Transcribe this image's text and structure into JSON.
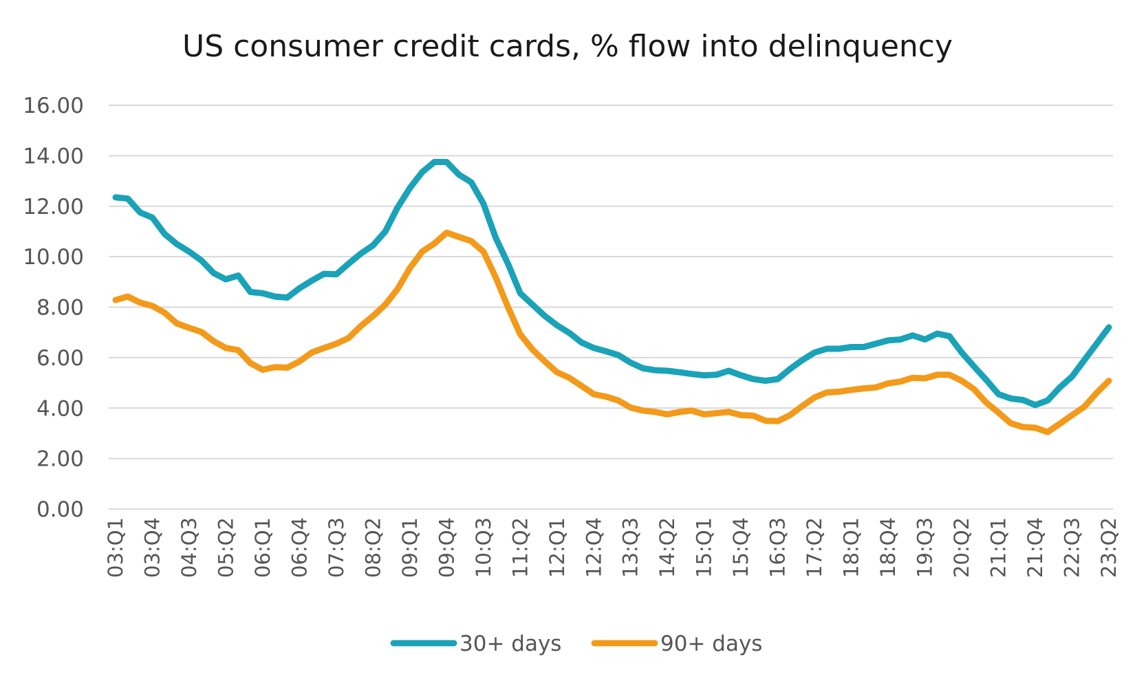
{
  "chart_data": {
    "type": "line",
    "title": "US consumer credit cards, % flow into delinquency",
    "xlabel": "",
    "ylabel": "",
    "ylim": [
      0,
      16
    ],
    "yticks": [
      "0.00",
      "2.00",
      "4.00",
      "6.00",
      "8.00",
      "10.00",
      "12.00",
      "14.00",
      "16.00"
    ],
    "grid": true,
    "legend": "bottom",
    "x": [
      "03:Q1",
      "03:Q2",
      "03:Q3",
      "03:Q4",
      "04:Q1",
      "04:Q2",
      "04:Q3",
      "04:Q4",
      "05:Q1",
      "05:Q2",
      "05:Q3",
      "05:Q4",
      "06:Q1",
      "06:Q2",
      "06:Q3",
      "06:Q4",
      "07:Q1",
      "07:Q2",
      "07:Q3",
      "07:Q4",
      "08:Q1",
      "08:Q2",
      "08:Q3",
      "08:Q4",
      "09:Q1",
      "09:Q2",
      "09:Q3",
      "09:Q4",
      "10:Q1",
      "10:Q2",
      "10:Q3",
      "10:Q4",
      "11:Q1",
      "11:Q2",
      "11:Q3",
      "11:Q4",
      "12:Q1",
      "12:Q2",
      "12:Q3",
      "12:Q4",
      "13:Q1",
      "13:Q2",
      "13:Q3",
      "13:Q4",
      "14:Q1",
      "14:Q2",
      "14:Q3",
      "14:Q4",
      "15:Q1",
      "15:Q2",
      "15:Q3",
      "15:Q4",
      "16:Q1",
      "16:Q2",
      "16:Q3",
      "16:Q4",
      "17:Q1",
      "17:Q2",
      "17:Q3",
      "17:Q4",
      "18:Q1",
      "18:Q2",
      "18:Q3",
      "18:Q4",
      "19:Q1",
      "19:Q2",
      "19:Q3",
      "19:Q4",
      "20:Q1",
      "20:Q2",
      "20:Q3",
      "20:Q4",
      "21:Q1",
      "21:Q2",
      "21:Q3",
      "21:Q4",
      "22:Q1",
      "22:Q2",
      "22:Q3",
      "22:Q4",
      "23:Q1",
      "23:Q2"
    ],
    "xtick_labels": [
      "03:Q1",
      "03:Q4",
      "04:Q3",
      "05:Q2",
      "06:Q1",
      "06:Q4",
      "07:Q3",
      "08:Q2",
      "09:Q1",
      "09:Q4",
      "10:Q3",
      "11:Q2",
      "12:Q1",
      "12:Q4",
      "13:Q3",
      "14:Q2",
      "15:Q1",
      "15:Q4",
      "16:Q3",
      "17:Q2",
      "18:Q1",
      "18:Q4",
      "19:Q3",
      "20:Q2",
      "21:Q1",
      "21:Q4",
      "22:Q3",
      "23:Q2"
    ],
    "series": [
      {
        "name": "30+ days",
        "color": "#1aa2b8",
        "values": [
          12.35,
          12.3,
          11.75,
          11.55,
          10.9,
          10.5,
          10.2,
          9.85,
          9.35,
          9.1,
          9.25,
          8.6,
          8.55,
          8.42,
          8.38,
          8.75,
          9.05,
          9.32,
          9.3,
          9.72,
          10.12,
          10.45,
          11.0,
          11.95,
          12.72,
          13.35,
          13.75,
          13.75,
          13.25,
          12.95,
          12.1,
          10.75,
          9.72,
          8.55,
          8.1,
          7.65,
          7.28,
          6.98,
          6.6,
          6.38,
          6.25,
          6.1,
          5.8,
          5.58,
          5.5,
          5.48,
          5.42,
          5.35,
          5.3,
          5.32,
          5.48,
          5.3,
          5.15,
          5.08,
          5.15,
          5.55,
          5.9,
          6.2,
          6.35,
          6.35,
          6.42,
          6.42,
          6.55,
          6.68,
          6.72,
          6.88,
          6.72,
          6.95,
          6.85,
          6.2,
          5.65,
          5.12,
          4.55,
          4.38,
          4.32,
          4.12,
          4.3,
          4.82,
          5.25,
          5.9,
          6.55,
          7.2
        ]
      },
      {
        "name": "90+ days",
        "color": "#f39a1a",
        "values": [
          8.28,
          8.42,
          8.18,
          8.05,
          7.78,
          7.35,
          7.18,
          7.02,
          6.65,
          6.38,
          6.3,
          5.78,
          5.52,
          5.62,
          5.6,
          5.85,
          6.2,
          6.38,
          6.55,
          6.78,
          7.25,
          7.65,
          8.1,
          8.72,
          9.55,
          10.2,
          10.52,
          10.95,
          10.78,
          10.62,
          10.2,
          9.18,
          8.0,
          6.92,
          6.32,
          5.85,
          5.42,
          5.2,
          4.88,
          4.55,
          4.45,
          4.3,
          4.02,
          3.9,
          3.85,
          3.75,
          3.85,
          3.9,
          3.75,
          3.8,
          3.85,
          3.72,
          3.7,
          3.5,
          3.48,
          3.72,
          4.08,
          4.42,
          4.62,
          4.65,
          4.72,
          4.78,
          4.82,
          4.98,
          5.05,
          5.2,
          5.18,
          5.32,
          5.32,
          5.08,
          4.75,
          4.22,
          3.82,
          3.4,
          3.25,
          3.22,
          3.05,
          3.38,
          3.72,
          4.05,
          4.6,
          5.08
        ]
      }
    ]
  }
}
